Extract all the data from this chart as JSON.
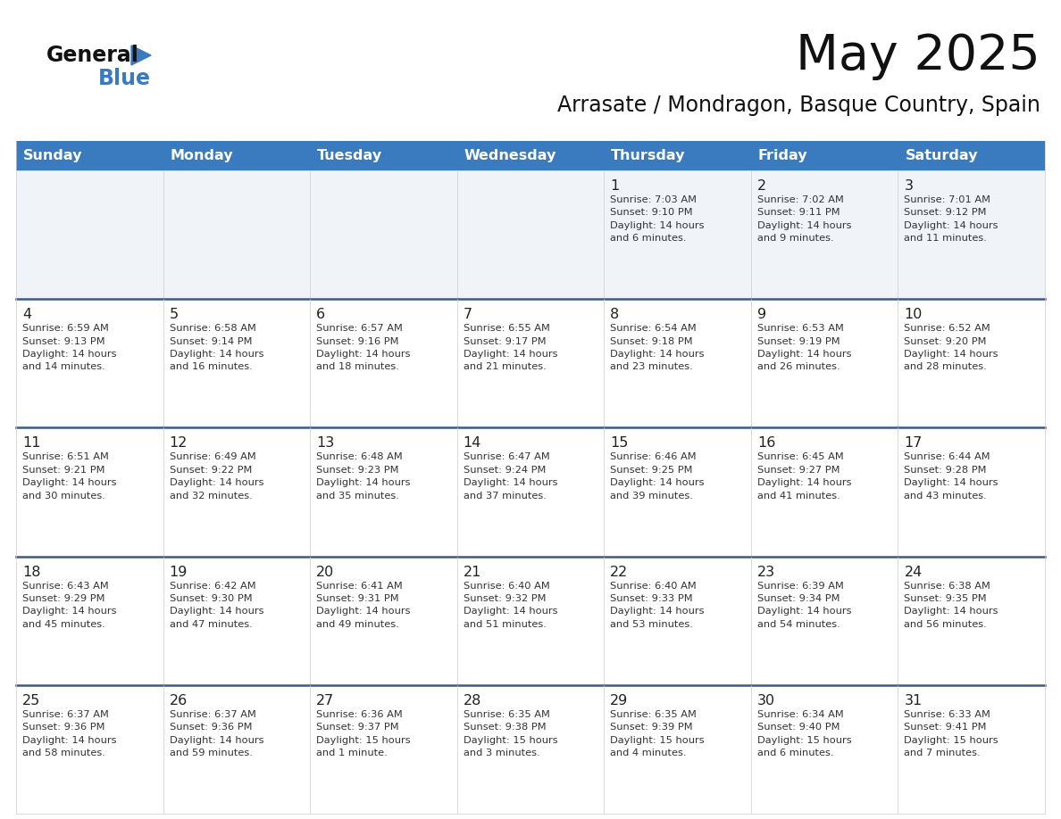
{
  "title": "May 2025",
  "subtitle": "Arrasate / Mondragon, Basque Country, Spain",
  "header_color": "#3a7abf",
  "header_text_color": "#ffffff",
  "row_bg_light": "#f0f4f8",
  "row_bg_white": "#ffffff",
  "separator_color": "#3a5a8a",
  "days_of_week": [
    "Sunday",
    "Monday",
    "Tuesday",
    "Wednesday",
    "Thursday",
    "Friday",
    "Saturday"
  ],
  "weeks": [
    [
      {
        "day": "",
        "info": ""
      },
      {
        "day": "",
        "info": ""
      },
      {
        "day": "",
        "info": ""
      },
      {
        "day": "",
        "info": ""
      },
      {
        "day": "1",
        "info": "Sunrise: 7:03 AM\nSunset: 9:10 PM\nDaylight: 14 hours\nand 6 minutes."
      },
      {
        "day": "2",
        "info": "Sunrise: 7:02 AM\nSunset: 9:11 PM\nDaylight: 14 hours\nand 9 minutes."
      },
      {
        "day": "3",
        "info": "Sunrise: 7:01 AM\nSunset: 9:12 PM\nDaylight: 14 hours\nand 11 minutes."
      }
    ],
    [
      {
        "day": "4",
        "info": "Sunrise: 6:59 AM\nSunset: 9:13 PM\nDaylight: 14 hours\nand 14 minutes."
      },
      {
        "day": "5",
        "info": "Sunrise: 6:58 AM\nSunset: 9:14 PM\nDaylight: 14 hours\nand 16 minutes."
      },
      {
        "day": "6",
        "info": "Sunrise: 6:57 AM\nSunset: 9:16 PM\nDaylight: 14 hours\nand 18 minutes."
      },
      {
        "day": "7",
        "info": "Sunrise: 6:55 AM\nSunset: 9:17 PM\nDaylight: 14 hours\nand 21 minutes."
      },
      {
        "day": "8",
        "info": "Sunrise: 6:54 AM\nSunset: 9:18 PM\nDaylight: 14 hours\nand 23 minutes."
      },
      {
        "day": "9",
        "info": "Sunrise: 6:53 AM\nSunset: 9:19 PM\nDaylight: 14 hours\nand 26 minutes."
      },
      {
        "day": "10",
        "info": "Sunrise: 6:52 AM\nSunset: 9:20 PM\nDaylight: 14 hours\nand 28 minutes."
      }
    ],
    [
      {
        "day": "11",
        "info": "Sunrise: 6:51 AM\nSunset: 9:21 PM\nDaylight: 14 hours\nand 30 minutes."
      },
      {
        "day": "12",
        "info": "Sunrise: 6:49 AM\nSunset: 9:22 PM\nDaylight: 14 hours\nand 32 minutes."
      },
      {
        "day": "13",
        "info": "Sunrise: 6:48 AM\nSunset: 9:23 PM\nDaylight: 14 hours\nand 35 minutes."
      },
      {
        "day": "14",
        "info": "Sunrise: 6:47 AM\nSunset: 9:24 PM\nDaylight: 14 hours\nand 37 minutes."
      },
      {
        "day": "15",
        "info": "Sunrise: 6:46 AM\nSunset: 9:25 PM\nDaylight: 14 hours\nand 39 minutes."
      },
      {
        "day": "16",
        "info": "Sunrise: 6:45 AM\nSunset: 9:27 PM\nDaylight: 14 hours\nand 41 minutes."
      },
      {
        "day": "17",
        "info": "Sunrise: 6:44 AM\nSunset: 9:28 PM\nDaylight: 14 hours\nand 43 minutes."
      }
    ],
    [
      {
        "day": "18",
        "info": "Sunrise: 6:43 AM\nSunset: 9:29 PM\nDaylight: 14 hours\nand 45 minutes."
      },
      {
        "day": "19",
        "info": "Sunrise: 6:42 AM\nSunset: 9:30 PM\nDaylight: 14 hours\nand 47 minutes."
      },
      {
        "day": "20",
        "info": "Sunrise: 6:41 AM\nSunset: 9:31 PM\nDaylight: 14 hours\nand 49 minutes."
      },
      {
        "day": "21",
        "info": "Sunrise: 6:40 AM\nSunset: 9:32 PM\nDaylight: 14 hours\nand 51 minutes."
      },
      {
        "day": "22",
        "info": "Sunrise: 6:40 AM\nSunset: 9:33 PM\nDaylight: 14 hours\nand 53 minutes."
      },
      {
        "day": "23",
        "info": "Sunrise: 6:39 AM\nSunset: 9:34 PM\nDaylight: 14 hours\nand 54 minutes."
      },
      {
        "day": "24",
        "info": "Sunrise: 6:38 AM\nSunset: 9:35 PM\nDaylight: 14 hours\nand 56 minutes."
      }
    ],
    [
      {
        "day": "25",
        "info": "Sunrise: 6:37 AM\nSunset: 9:36 PM\nDaylight: 14 hours\nand 58 minutes."
      },
      {
        "day": "26",
        "info": "Sunrise: 6:37 AM\nSunset: 9:36 PM\nDaylight: 14 hours\nand 59 minutes."
      },
      {
        "day": "27",
        "info": "Sunrise: 6:36 AM\nSunset: 9:37 PM\nDaylight: 15 hours\nand 1 minute."
      },
      {
        "day": "28",
        "info": "Sunrise: 6:35 AM\nSunset: 9:38 PM\nDaylight: 15 hours\nand 3 minutes."
      },
      {
        "day": "29",
        "info": "Sunrise: 6:35 AM\nSunset: 9:39 PM\nDaylight: 15 hours\nand 4 minutes."
      },
      {
        "day": "30",
        "info": "Sunrise: 6:34 AM\nSunset: 9:40 PM\nDaylight: 15 hours\nand 6 minutes."
      },
      {
        "day": "31",
        "info": "Sunrise: 6:33 AM\nSunset: 9:41 PM\nDaylight: 15 hours\nand 7 minutes."
      }
    ]
  ]
}
